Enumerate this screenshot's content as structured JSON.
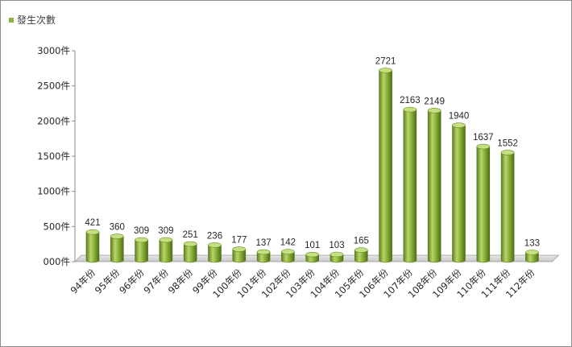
{
  "chart_data": {
    "type": "bar",
    "legend": "發生次數",
    "legend_position": "top-left",
    "categories": [
      "94年份",
      "95年份",
      "96年份",
      "97年份",
      "98年份",
      "99年份",
      "100年份",
      "101年份",
      "102年份",
      "103年份",
      "104年份",
      "105年份",
      "106年份",
      "107年份",
      "108年份",
      "109年份",
      "110年份",
      "111年份",
      "112年份"
    ],
    "values": [
      421,
      360,
      309,
      309,
      251,
      236,
      177,
      137,
      142,
      101,
      103,
      165,
      2721,
      2163,
      2149,
      1940,
      1637,
      1552,
      133
    ],
    "ylim": [
      0,
      3000
    ],
    "yticks": [
      0,
      500,
      1000,
      1500,
      2000,
      2500,
      3000
    ],
    "ytick_labels": [
      "000件",
      "500件",
      "1000件",
      "1500件",
      "2000件",
      "2500件",
      "3000件"
    ],
    "grid": false,
    "style": "3d-cylinder",
    "bar_color": "#8db33a"
  }
}
